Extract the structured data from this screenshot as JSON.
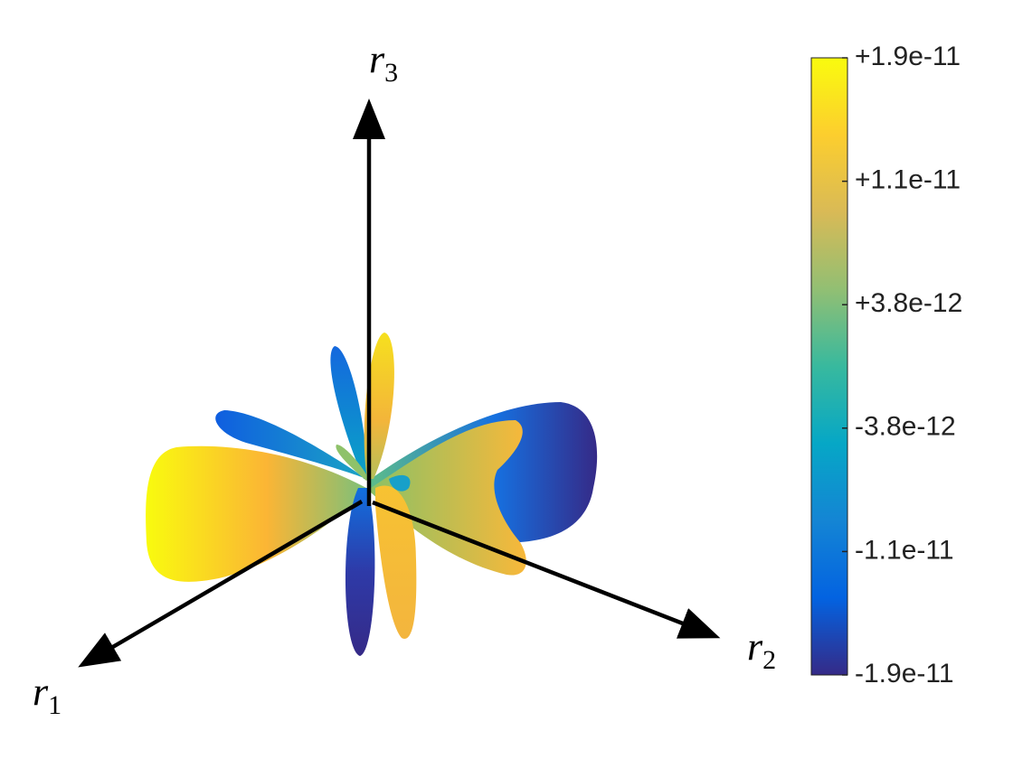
{
  "chart_data": {
    "type": "surface3d",
    "xlabel": {
      "text": "r",
      "subscript": "1"
    },
    "ylabel": {
      "text": "r",
      "subscript": "2"
    },
    "zlabel": {
      "text": "r",
      "subscript": "3"
    },
    "colorbar": {
      "clim": [
        -1.9e-11,
        1.9e-11
      ],
      "ticks": [
        {
          "value": 1.9e-11,
          "label": "+1.9e-11"
        },
        {
          "value": 1.14e-11,
          "label": "+1.1e-11"
        },
        {
          "value": 3.8e-12,
          "label": "+3.8e-12"
        },
        {
          "value": -3.8e-12,
          "label": "-3.8e-12"
        },
        {
          "value": -1.14e-11,
          "label": "-1.1e-11"
        },
        {
          "value": -1.9e-11,
          "label": "-1.9e-11"
        }
      ],
      "colormap": [
        "#352a87",
        "#0363e1",
        "#1485d4",
        "#06a7c6",
        "#38b99e",
        "#92bf73",
        "#d9ba56",
        "#fcce2e",
        "#f9fb0e"
      ]
    }
  }
}
